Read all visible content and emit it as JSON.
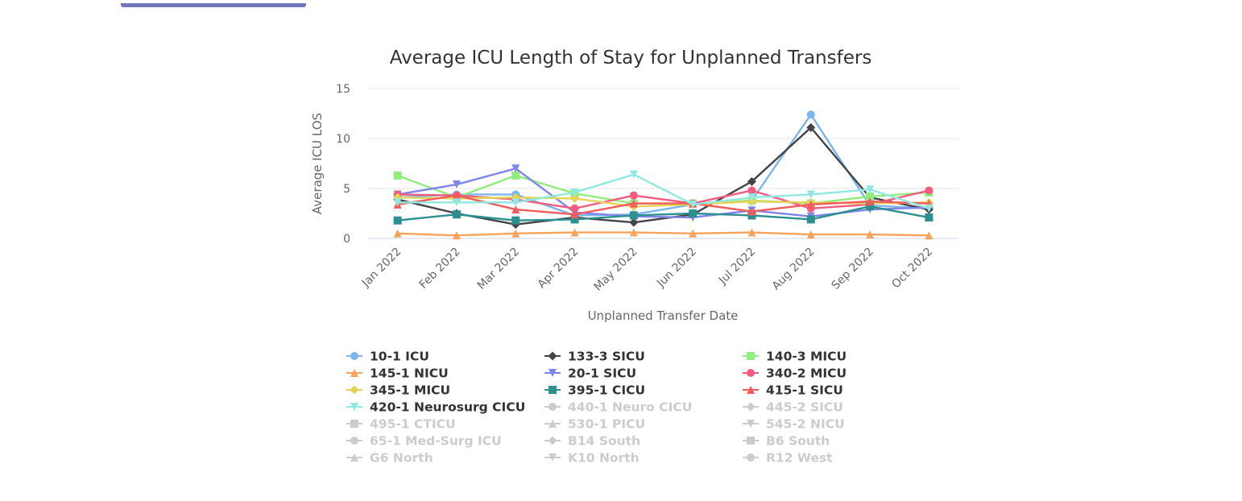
{
  "chart_data": {
    "type": "line",
    "title": "Average ICU Length of Stay for Unplanned Transfers",
    "xlabel": "Unplanned Transfer Date",
    "ylabel": "Average ICU LOS",
    "ylim": [
      0,
      15
    ],
    "yticks": [
      "0",
      "5",
      "10",
      "15"
    ],
    "grid": true,
    "legend_placement": "bottom",
    "categories": [
      "Jan 2022",
      "Feb 2022",
      "Mar 2022",
      "Apr 2022",
      "May 2022",
      "Jun 2022",
      "Jul 2022",
      "Aug 2022",
      "Sep 2022",
      "Oct 2022"
    ],
    "series": [
      {
        "name": "10-1 ICU",
        "color": "#7cb5ec",
        "marker": "circle",
        "visible": true,
        "values": [
          4.1,
          4.4,
          4.4,
          2.3,
          2.4,
          3.4,
          3.8,
          12.4,
          3.3,
          3.0
        ]
      },
      {
        "name": "133-3 SICU",
        "color": "#434348",
        "marker": "diamond",
        "visible": true,
        "values": [
          3.9,
          2.5,
          1.4,
          2.1,
          1.6,
          2.4,
          5.7,
          11.1,
          4.1,
          2.9
        ]
      },
      {
        "name": "140-3 MICU",
        "color": "#90ed7d",
        "marker": "square",
        "visible": true,
        "values": [
          6.3,
          4.1,
          6.3,
          4.5,
          3.5,
          3.5,
          3.8,
          3.5,
          4.2,
          4.6
        ]
      },
      {
        "name": "145-1 NICU",
        "color": "#f7a35c",
        "marker": "triangle",
        "visible": true,
        "values": [
          0.5,
          0.3,
          0.5,
          0.6,
          0.6,
          0.5,
          0.6,
          0.4,
          0.4,
          0.3
        ]
      },
      {
        "name": "20-1 SICU",
        "color": "#8085e9",
        "marker": "triangle-down",
        "visible": true,
        "values": [
          4.4,
          5.4,
          7.0,
          2.6,
          2.2,
          2.1,
          2.8,
          2.2,
          2.9,
          3.1
        ]
      },
      {
        "name": "340-2 MICU",
        "color": "#f15c80",
        "marker": "circle",
        "visible": true,
        "values": [
          4.4,
          4.3,
          3.9,
          3.0,
          4.3,
          3.5,
          4.8,
          3.0,
          3.4,
          4.8
        ]
      },
      {
        "name": "345-1 MICU",
        "color": "#e4d354",
        "marker": "diamond",
        "visible": true,
        "values": [
          4.1,
          4.0,
          4.1,
          4.0,
          3.2,
          3.4,
          3.7,
          3.6,
          3.5,
          3.6
        ]
      },
      {
        "name": "395-1 CICU",
        "color": "#2b908f",
        "marker": "square",
        "visible": true,
        "values": [
          1.8,
          2.4,
          1.8,
          1.9,
          2.3,
          2.5,
          2.3,
          1.9,
          3.2,
          2.1
        ]
      },
      {
        "name": "415-1 SICU",
        "color": "#f45b5b",
        "marker": "triangle",
        "visible": true,
        "values": [
          3.4,
          4.3,
          2.9,
          2.4,
          3.5,
          3.5,
          2.7,
          3.4,
          3.7,
          3.5
        ]
      },
      {
        "name": "420-1 Neurosurg CICU",
        "color": "#91e8e1",
        "marker": "triangle-down",
        "visible": true,
        "values": [
          3.6,
          3.6,
          3.6,
          4.6,
          6.4,
          3.4,
          4.1,
          4.4,
          4.9,
          3.0
        ]
      },
      {
        "name": "440-1 Neuro CICU",
        "marker": "circle",
        "visible": false
      },
      {
        "name": "445-2 SICU",
        "marker": "diamond",
        "visible": false
      },
      {
        "name": "495-1 CTICU",
        "marker": "square",
        "visible": false
      },
      {
        "name": "530-1 PICU",
        "marker": "triangle",
        "visible": false
      },
      {
        "name": "545-2 NICU",
        "marker": "triangle-down",
        "visible": false
      },
      {
        "name": "65-1 Med-Surg ICU",
        "marker": "circle",
        "visible": false
      },
      {
        "name": "B14 South",
        "marker": "diamond",
        "visible": false
      },
      {
        "name": "B6 South",
        "marker": "square",
        "visible": false
      },
      {
        "name": "G6 North",
        "marker": "triangle",
        "visible": false
      },
      {
        "name": "K10 North",
        "marker": "triangle-down",
        "visible": false
      },
      {
        "name": "R12 West",
        "marker": "circle",
        "visible": false
      }
    ]
  },
  "colors": {
    "text": "#333333",
    "axis_text": "#666666",
    "gridline": "#e6e6e6",
    "axis_line": "#ccd6eb",
    "hidden_legend": "#cccccc",
    "top_fragment": "#5a5fb0"
  }
}
